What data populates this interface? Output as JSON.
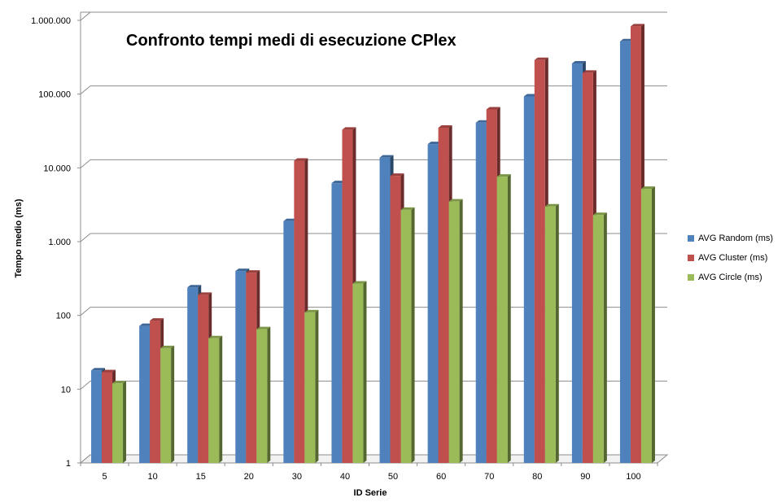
{
  "chart_data": {
    "type": "bar",
    "title": "Confronto tempi medi di esecuzione CPlex",
    "xlabel": "ID Serie",
    "ylabel": "Tempo medio (ms)",
    "yscale": "log",
    "ylim": [
      1,
      1000000
    ],
    "y_ticks": [
      "1",
      "10",
      "100",
      "1.000",
      "10.000",
      "100.000",
      "1.000.000"
    ],
    "grid": true,
    "legend_position": "right",
    "categories": [
      "5",
      "10",
      "15",
      "20",
      "30",
      "40",
      "50",
      "60",
      "70",
      "80",
      "90",
      "100"
    ],
    "series": [
      {
        "name": "AVG Random (ms)",
        "color": "#4F81BD",
        "values": [
          18,
          72,
          240,
          400,
          1900,
          6200,
          13800,
          21000,
          41000,
          93000,
          260000,
          520000
        ]
      },
      {
        "name": "AVG Cluster (ms)",
        "color": "#C0504D",
        "values": [
          17,
          85,
          190,
          380,
          12500,
          33000,
          7800,
          35000,
          62000,
          290000,
          195000,
          830000
        ]
      },
      {
        "name": "AVG Circle (ms)",
        "color": "#9BBB59",
        "values": [
          12,
          36,
          49,
          65,
          110,
          270,
          2700,
          3500,
          7600,
          3000,
          2300,
          5200
        ]
      }
    ]
  }
}
